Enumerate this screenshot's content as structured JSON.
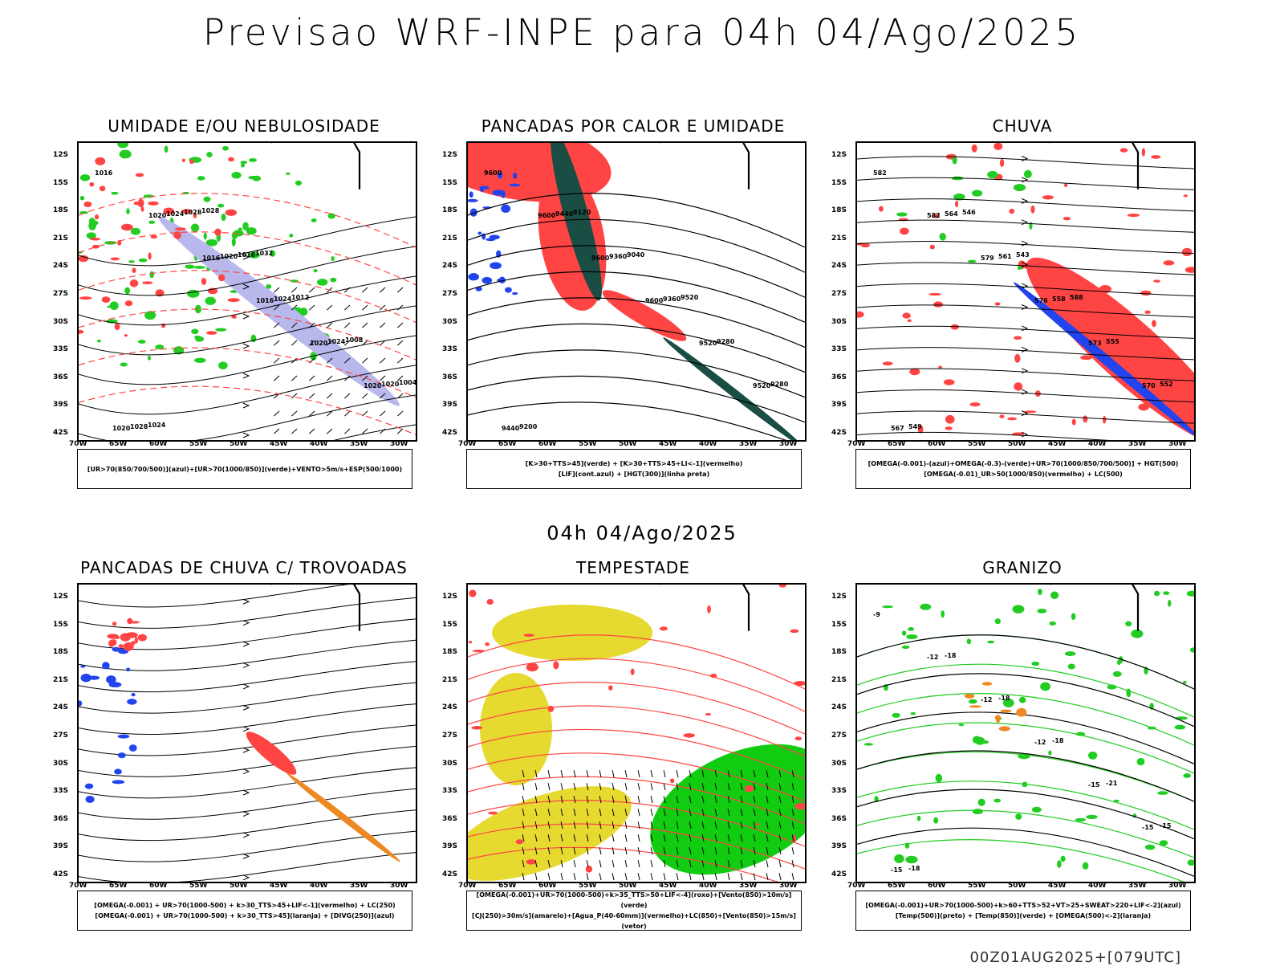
{
  "title": "Previsao WRF-INPE  para 04h 04/Ago/2025",
  "mid_title": "04h 04/Ago/2025",
  "footer": "00Z01AUG2025+[079UTC]",
  "lat_labels": [
    "12S",
    "15S",
    "18S",
    "21S",
    "24S",
    "27S",
    "30S",
    "33S",
    "36S",
    "39S",
    "42S"
  ],
  "lon_labels": [
    "70W",
    "65W",
    "60W",
    "55W",
    "50W",
    "45W",
    "40W",
    "35W",
    "30W"
  ],
  "panels": [
    {
      "title": "UMIDADE E/OU NEBULOSIDADE",
      "legend": [
        "[UR>70(850/700/500)](azul)+[UR>70(1000/850)](verde)+VENTO>5m/s+ESP(500/1000)"
      ],
      "fill_colors": [
        "#b8b8ec",
        "#22cc22",
        "#ff4444"
      ],
      "contour_labels": [
        "1016",
        "1020",
        "1016",
        "1016",
        "1020",
        "1020",
        "1020",
        "1024",
        "1020",
        "1024",
        "1024",
        "1020",
        "1028",
        "1028",
        "1016",
        "1012",
        "1008",
        "1004",
        "1024",
        "1028",
        "1032"
      ]
    },
    {
      "title": "PANCADAS POR CALOR E UMIDADE",
      "legend": [
        "[K>30+TTS>45](verde) + [K>30+TTS>45+LI<-1](vermelho)",
        "[LIF](cont.azul) + [HGT(300)](linha preta)"
      ],
      "fill_colors": [
        "#ff4444",
        "#1a4d44",
        "#2244ee"
      ],
      "contour_labels": [
        "9600",
        "9600",
        "9600",
        "9600",
        "9520",
        "9520",
        "9440",
        "9440",
        "9360",
        "9360",
        "9280",
        "9280",
        "9200",
        "9120",
        "9040",
        "9520"
      ]
    },
    {
      "title": "CHUVA",
      "legend": [
        "[OMEGA(-0.001)-(azul)+OMEGA(-0.3)-(verde)+UR>70(1000/850/700/500)] + HGT(500)",
        "[OMEGA(-0.01)_UR>50(1000/850)(vermelho) + LC(500)"
      ],
      "fill_colors": [
        "#ff4444",
        "#2244ee",
        "#22cc22"
      ],
      "contour_labels": [
        "582",
        "582",
        "579",
        "576",
        "573",
        "570",
        "567",
        "564",
        "561",
        "558",
        "555",
        "552",
        "549",
        "546",
        "543",
        "588"
      ]
    },
    {
      "title": "PANCADAS DE CHUVA C/ TROVOADAS",
      "legend": [
        "[OMEGA(-0.001) + UR>70(1000-500) + k>30_TTS>45+LIF<-1](vermelho) + LC(250)",
        "[OMEGA(-0.001) + UR>70(1000-500) + k>30_TTS>45](laranja) + [DIVG(250)](azul)"
      ],
      "fill_colors": [
        "#2244ee",
        "#ff4444",
        "#ee8822"
      ],
      "contour_labels": []
    },
    {
      "title": "TEMPESTADE",
      "legend": [
        "[OMEGA(-0.001)+UR>70(1000-500)+k>35_TTS>50+LIF<-4](roxo)+[Vento(850)>10m/s](verde)",
        "[CJ(250)>30m/s](amarelo)+[Agua_P(40-60mm)](vermelho)+LC(850)+[Vento(850)>15m/s](vetor)"
      ],
      "fill_colors": [
        "#e6d930",
        "#11cc11",
        "#ff4444"
      ],
      "contour_labels": []
    },
    {
      "title": "GRANIZO",
      "legend": [
        "[OMEGA(-0.001)+UR>70(1000-500)+k>60+TTS>52+VT>25+SWEAT>220+LIF<-2](azul)",
        "[Temp(500)](preto) + [Temp(850)](verde) + [OMEGA(500)<-2](laranja)"
      ],
      "fill_colors": [
        "#22cc22",
        "#ee8822",
        "#2244ee"
      ],
      "contour_labels": [
        "-9",
        "-12",
        "-12",
        "-12",
        "-15",
        "-15",
        "-15",
        "-18",
        "-18",
        "-18",
        "-21",
        "-15",
        "-18"
      ]
    }
  ]
}
